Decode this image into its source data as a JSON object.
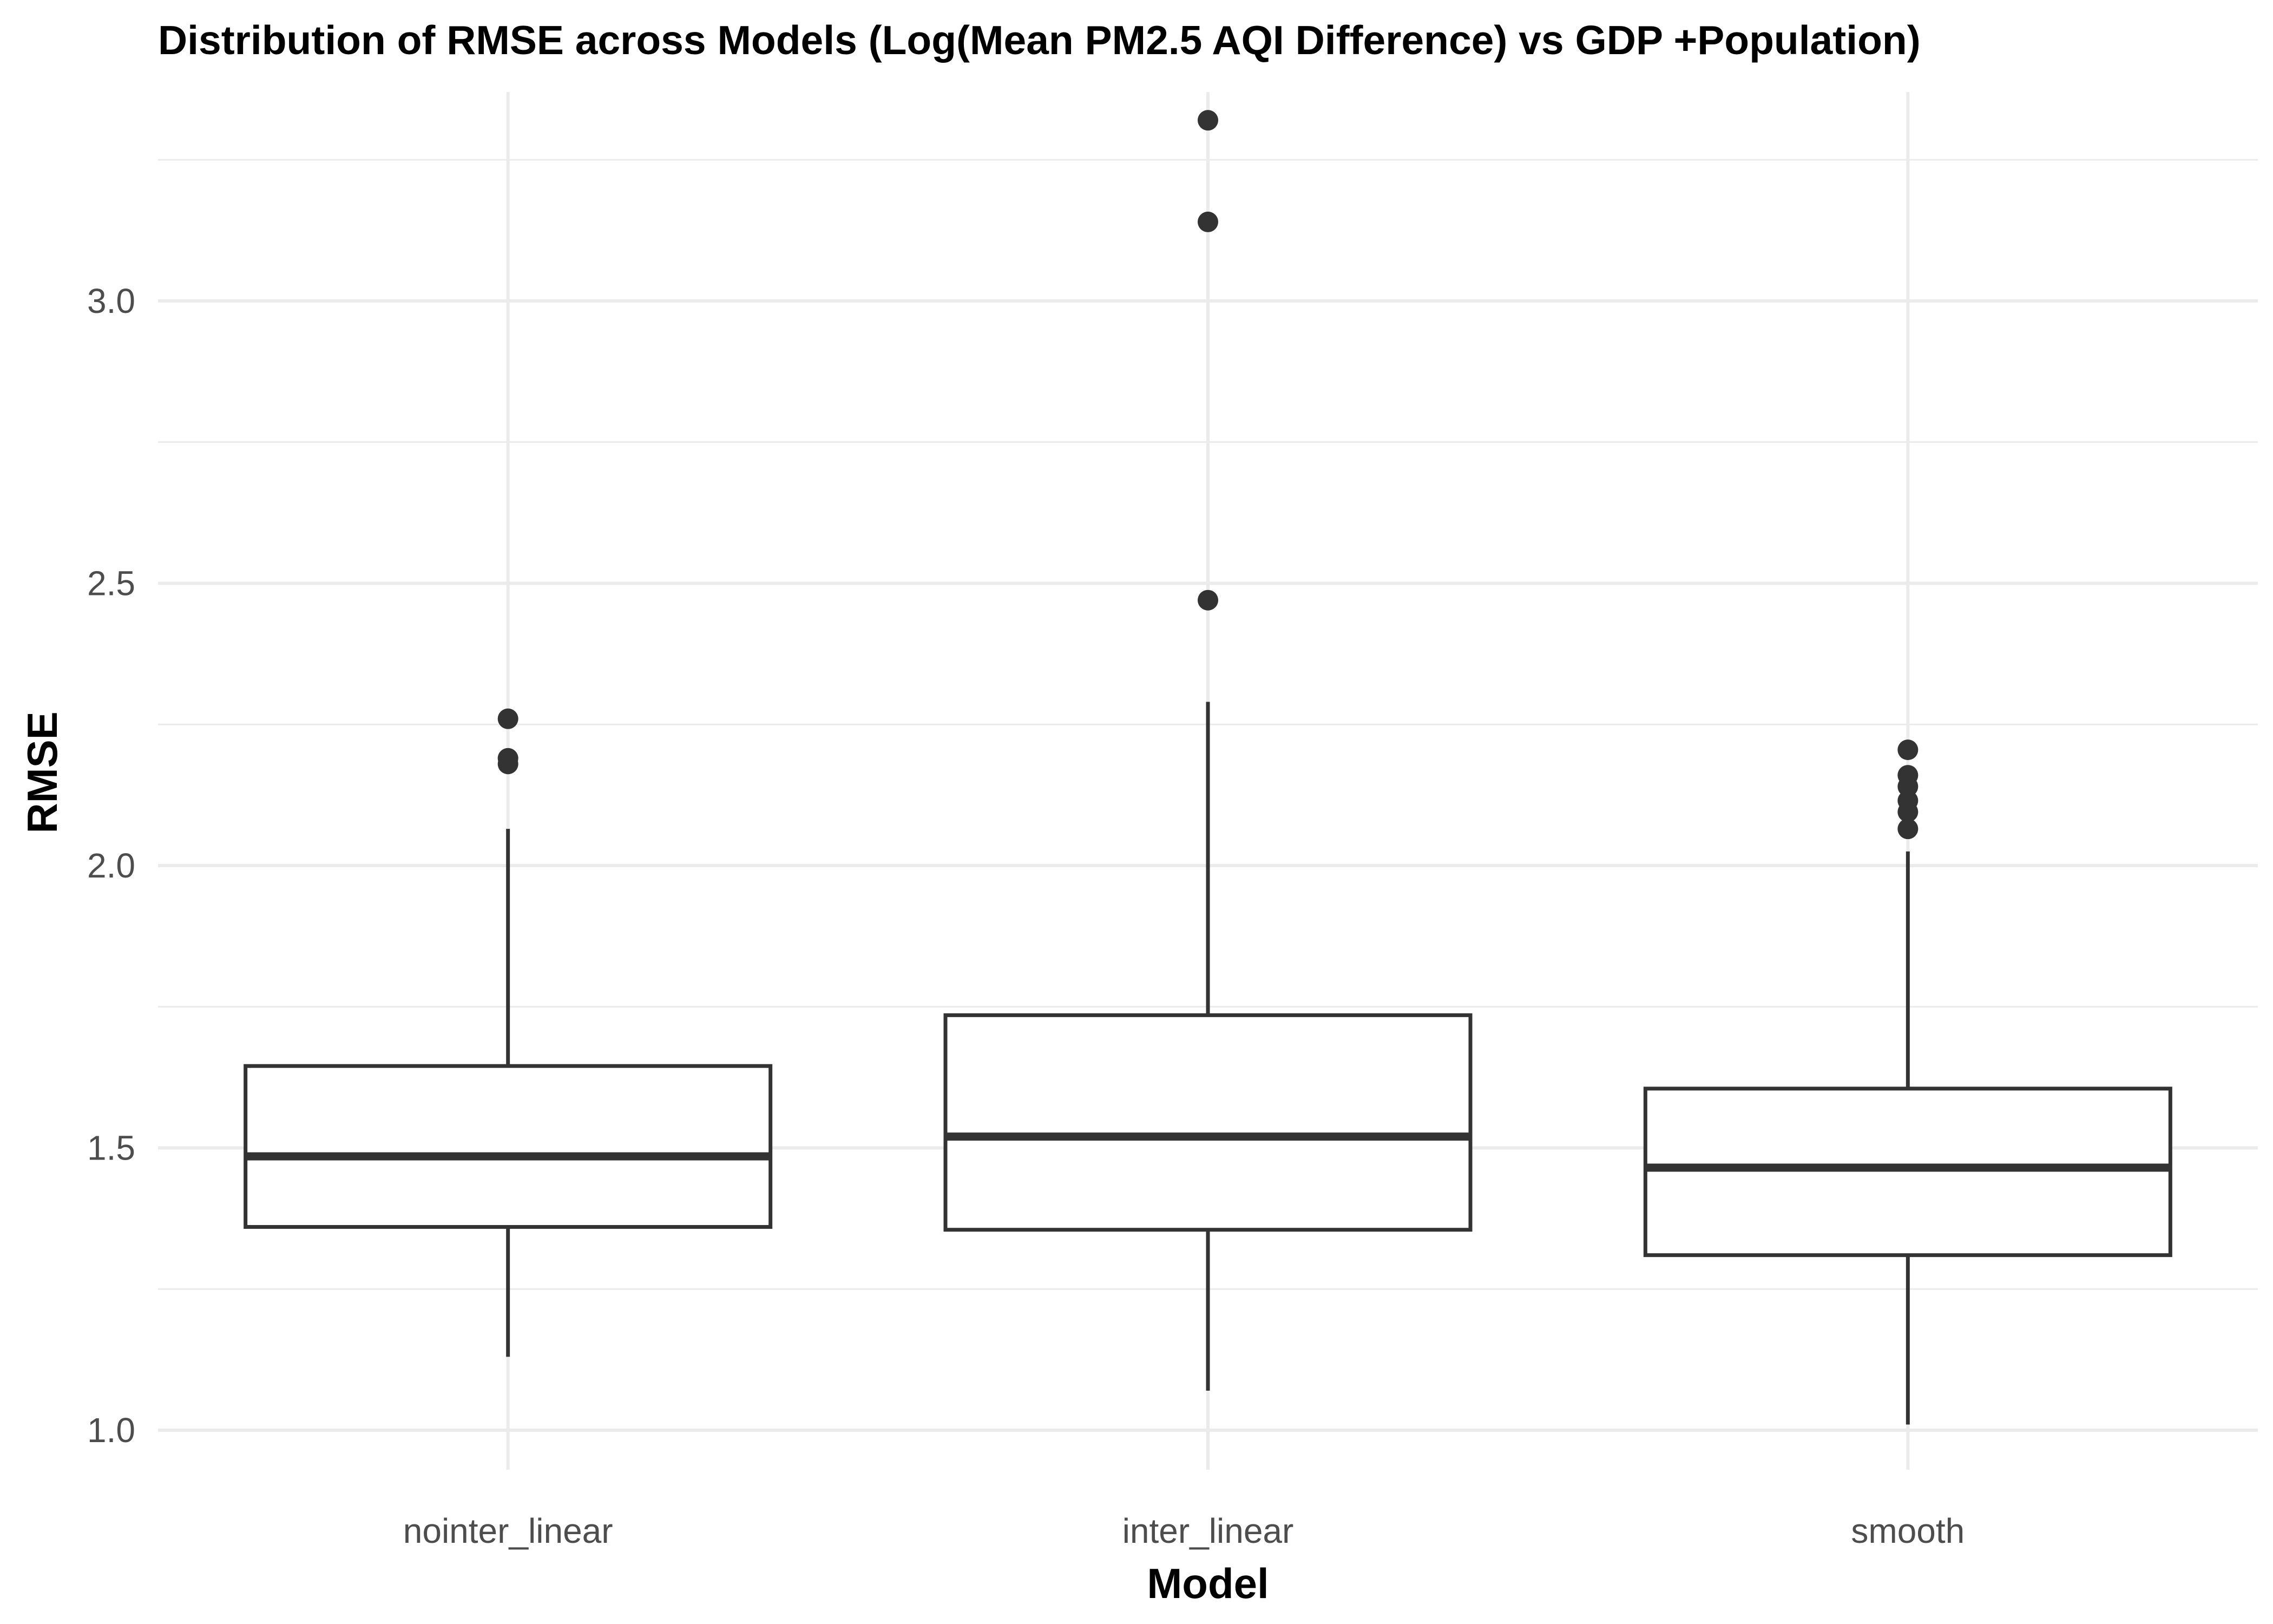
{
  "chart_data": {
    "type": "boxplot",
    "title": "Distribution of RMSE across Models (Log(Mean PM2.5 AQI Difference) vs GDP +Population)",
    "xlabel": "Model",
    "ylabel": "RMSE",
    "ylim": [
      0.93,
      3.37
    ],
    "yticks": [
      1.0,
      1.5,
      2.0,
      2.5,
      3.0
    ],
    "ytick_labels": [
      "1.0",
      "1.5",
      "2.0",
      "2.5",
      "3.0"
    ],
    "minor_yticks": [
      1.25,
      1.75,
      2.25,
      2.75,
      3.25
    ],
    "grid": true,
    "legend": "none",
    "categories": [
      "nointer_linear",
      "inter_linear",
      "smooth"
    ],
    "boxes": [
      {
        "category": "nointer_linear",
        "whisker_low": 1.13,
        "q1": 1.36,
        "median": 1.485,
        "q3": 1.645,
        "whisker_high": 2.065,
        "outliers": [
          2.18,
          2.19,
          2.26
        ]
      },
      {
        "category": "inter_linear",
        "whisker_low": 1.07,
        "q1": 1.355,
        "median": 1.52,
        "q3": 1.735,
        "whisker_high": 2.29,
        "outliers": [
          2.47,
          3.14,
          3.32
        ]
      },
      {
        "category": "smooth",
        "whisker_low": 1.01,
        "q1": 1.31,
        "median": 1.465,
        "q3": 1.605,
        "whisker_high": 2.025,
        "outliers": [
          2.065,
          2.095,
          2.115,
          2.14,
          2.16,
          2.205
        ]
      }
    ],
    "colors": {
      "box_line": "#333333",
      "grid": "#ebebeb",
      "tick_text": "#4d4d4d",
      "title_text": "#000000"
    }
  }
}
